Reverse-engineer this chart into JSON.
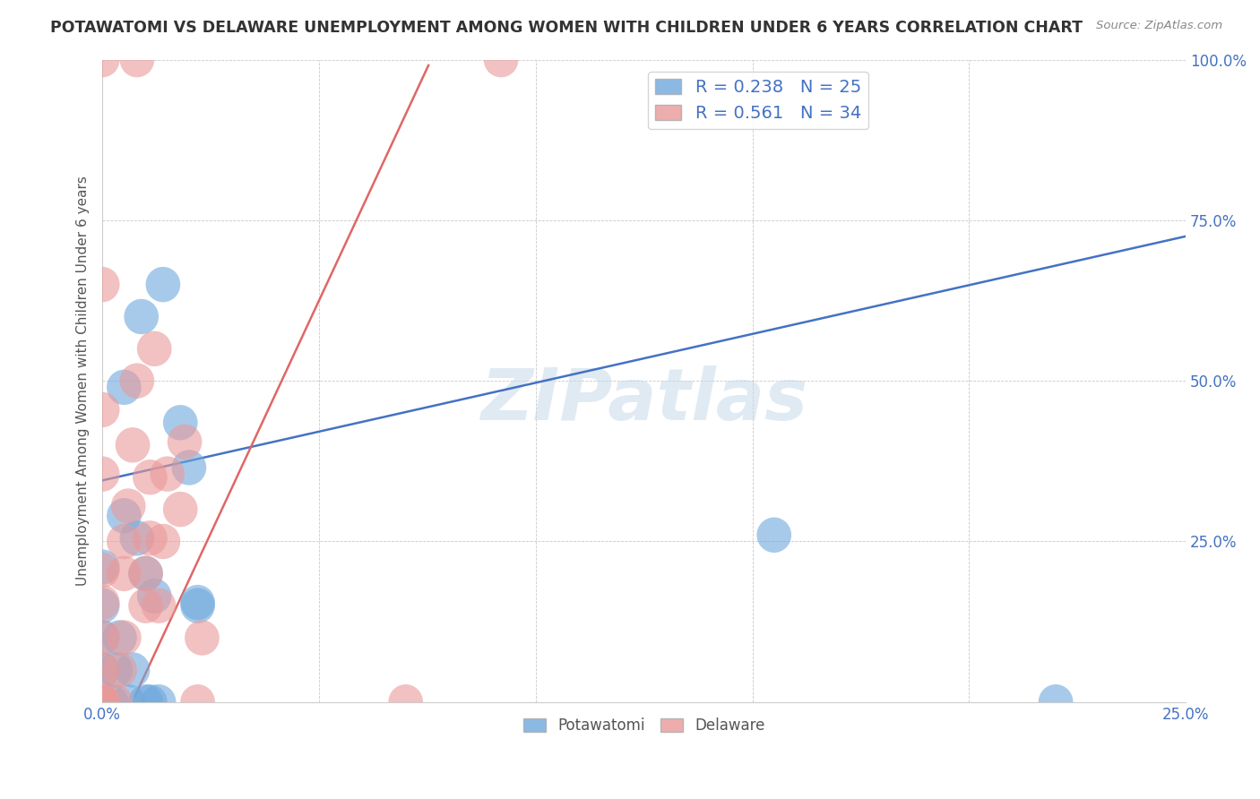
{
  "title": "POTAWATOMI VS DELAWARE UNEMPLOYMENT AMONG WOMEN WITH CHILDREN UNDER 6 YEARS CORRELATION CHART",
  "source": "Source: ZipAtlas.com",
  "ylabel": "Unemployment Among Women with Children Under 6 years",
  "xlim": [
    0.0,
    0.25
  ],
  "ylim": [
    0.0,
    1.0
  ],
  "xticks": [
    0.0,
    0.05,
    0.1,
    0.15,
    0.2,
    0.25
  ],
  "yticks": [
    0.0,
    0.25,
    0.5,
    0.75,
    1.0
  ],
  "xtick_labels": [
    "0.0%",
    "",
    "",
    "",
    "",
    "25.0%"
  ],
  "ytick_labels": [
    "",
    "25.0%",
    "50.0%",
    "75.0%",
    "100.0%"
  ],
  "blue_R": 0.238,
  "blue_N": 25,
  "pink_R": 0.561,
  "pink_N": 34,
  "blue_color": "#6fa8dc",
  "pink_color": "#ea9999",
  "blue_line_color": "#4472c4",
  "pink_line_color": "#e06666",
  "watermark": "ZIPatlas",
  "blue_intercept": 0.345,
  "blue_slope": 1.52,
  "pink_intercept": -0.1,
  "pink_slope": 14.5,
  "potawatomi_x": [
    0.0,
    0.0,
    0.0,
    0.0,
    0.002,
    0.003,
    0.004,
    0.005,
    0.005,
    0.006,
    0.007,
    0.008,
    0.009,
    0.01,
    0.01,
    0.011,
    0.012,
    0.013,
    0.014,
    0.018,
    0.02,
    0.022,
    0.022,
    0.155,
    0.22
  ],
  "potawatomi_y": [
    0.05,
    0.1,
    0.15,
    0.21,
    0.0,
    0.05,
    0.1,
    0.29,
    0.49,
    0.0,
    0.05,
    0.255,
    0.6,
    0.0,
    0.2,
    0.0,
    0.165,
    0.0,
    0.65,
    0.435,
    0.365,
    0.15,
    0.155,
    0.26,
    0.0
  ],
  "delaware_x": [
    0.0,
    0.0,
    0.0,
    0.0,
    0.0,
    0.0,
    0.0,
    0.0,
    0.0,
    0.0,
    0.0,
    0.003,
    0.004,
    0.005,
    0.005,
    0.005,
    0.006,
    0.007,
    0.008,
    0.008,
    0.01,
    0.01,
    0.011,
    0.011,
    0.012,
    0.013,
    0.014,
    0.015,
    0.018,
    0.019,
    0.022,
    0.023,
    0.07,
    0.092
  ],
  "delaware_y": [
    0.0,
    0.0,
    0.0,
    0.05,
    0.1,
    0.155,
    0.205,
    0.355,
    0.455,
    0.65,
    1.0,
    0.0,
    0.05,
    0.1,
    0.2,
    0.25,
    0.305,
    0.4,
    0.5,
    1.0,
    0.15,
    0.2,
    0.255,
    0.35,
    0.55,
    0.15,
    0.25,
    0.355,
    0.3,
    0.405,
    0.0,
    0.1,
    0.0,
    1.0
  ]
}
